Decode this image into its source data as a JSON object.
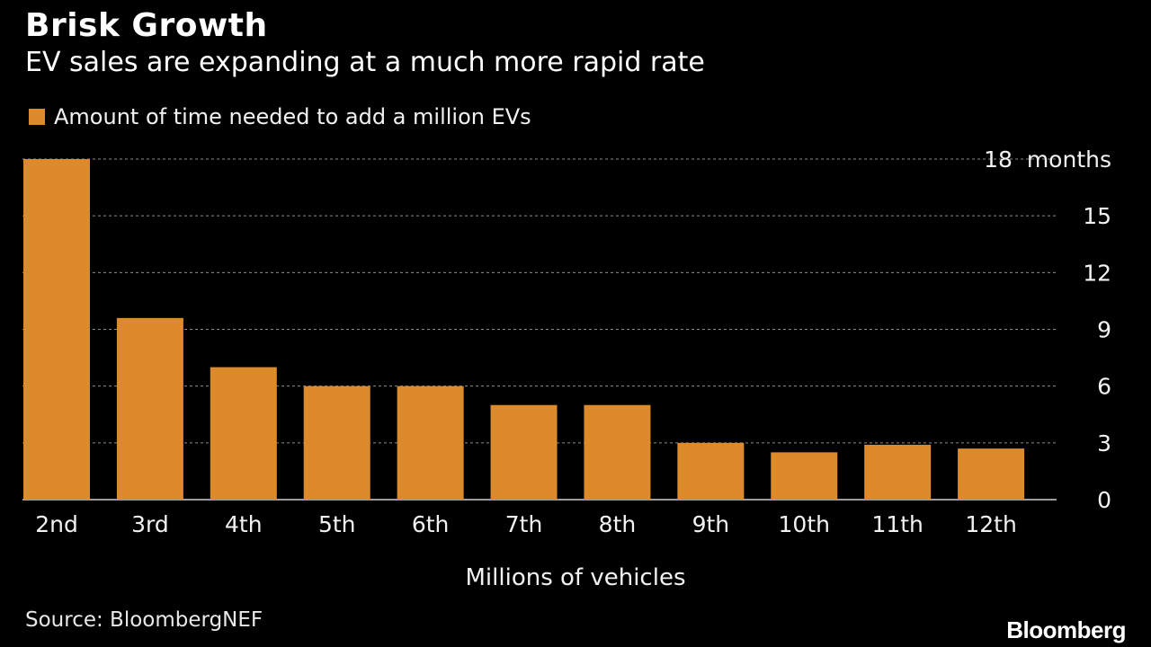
{
  "colors": {
    "bar": "#DD8A2A",
    "gridline": "#8c8c8c",
    "text": "#ffffff"
  },
  "legend": {
    "label": "Amount of time needed to add a million EVs"
  },
  "source": "Source: BloombergNEF",
  "brand": "Bloomberg",
  "chart_data": {
    "type": "bar",
    "title": "Brisk Growth",
    "subtitle": "EV sales are expanding at a much more rapid rate",
    "xlabel": "Millions of vehicles",
    "ylabel": "",
    "categories": [
      "2nd",
      "3rd",
      "4th",
      "5th",
      "6th",
      "7th",
      "8th",
      "9th",
      "10th",
      "11th",
      "12th"
    ],
    "series": [
      {
        "name": "Amount of time needed to add a million EVs",
        "values": [
          18,
          9.6,
          7,
          6,
          6,
          5,
          5,
          3,
          2.5,
          2.9,
          2.7
        ]
      }
    ],
    "ylim": [
      0,
      18
    ],
    "yticks": [
      0,
      3,
      6,
      9,
      12,
      15,
      18
    ],
    "ytick_labels": [
      "0",
      "3",
      "6",
      "9",
      "12",
      "15",
      "18  months"
    ],
    "y_axis_side": "right",
    "grid": true,
    "legend_position": "top-left"
  }
}
